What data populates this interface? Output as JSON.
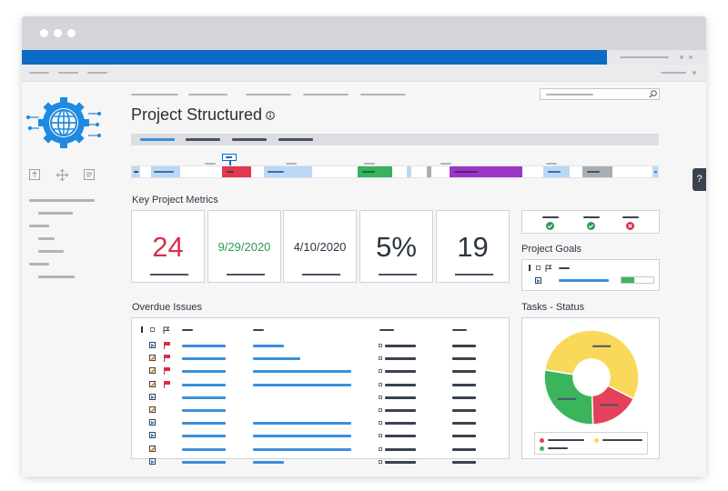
{
  "window": {
    "titlebar_dots": 3
  },
  "page": {
    "title": "Project Structured",
    "info_icon": "info-icon",
    "help_button_label": "?"
  },
  "search": {
    "icon": "search-icon"
  },
  "sidebar": {
    "logo_icon": "gear-globe-icon",
    "tool_icons": [
      "upload-icon",
      "move-icon",
      "document-icon"
    ]
  },
  "sections": {
    "key_metrics": "Key Project Metrics",
    "project_goals": "Project Goals",
    "overdue_issues": "Overdue Issues",
    "tasks_status": "Tasks - Status"
  },
  "metrics": [
    {
      "value": "24",
      "color": "#d8314f",
      "size": "large"
    },
    {
      "value": "9/29/2020",
      "color": "#2e9a55",
      "size": "small"
    },
    {
      "value": "4/10/2020",
      "color": "#2e3440",
      "size": "small"
    },
    {
      "value": "5%",
      "color": "#2e3440",
      "size": "large"
    },
    {
      "value": "19",
      "color": "#2e3440",
      "size": "large"
    }
  ],
  "status_checks": [
    {
      "icon": "check-circle-icon",
      "color": "#2e9a55"
    },
    {
      "icon": "check-circle-icon",
      "color": "#2e9a55"
    },
    {
      "icon": "close-circle-icon",
      "color": "#d8314f"
    }
  ],
  "overdue_issues": {
    "header_icons": [
      "priority-icon",
      "checkbox-icon",
      "flag-icon"
    ],
    "rows": [
      {
        "type": "play-icon",
        "flagged": true
      },
      {
        "type": "edit-icon",
        "flagged": true
      },
      {
        "type": "edit-icon",
        "flagged": true
      },
      {
        "type": "edit-icon",
        "flagged": true
      },
      {
        "type": "play-icon",
        "flagged": false
      },
      {
        "type": "edit-icon",
        "flagged": false
      },
      {
        "type": "play-icon",
        "flagged": false
      },
      {
        "type": "play-icon",
        "flagged": false
      },
      {
        "type": "edit-icon",
        "flagged": false
      },
      {
        "type": "play-icon",
        "flagged": false
      }
    ]
  },
  "chart_data": {
    "type": "pie",
    "title": "",
    "slices": [
      {
        "value": 55,
        "color": "#f9d85a"
      },
      {
        "value": 17,
        "color": "#e4425a"
      },
      {
        "value": 28,
        "color": "#3bb55c"
      }
    ],
    "legend_placement": "bottom",
    "legend_colors": [
      "#e4425a",
      "#f9d85a",
      "#3bb55c"
    ]
  },
  "colors": {
    "brand_blue": "#0c6bc4",
    "accent_blue": "#3b8fdc"
  }
}
